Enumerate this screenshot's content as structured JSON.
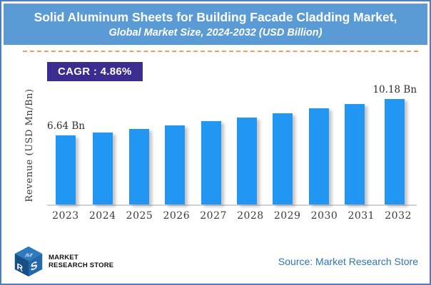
{
  "header": {
    "title": "Solid Aluminum Sheets for Building Facade Cladding Market,",
    "subtitle": "Global Market Size, 2024-2032 (USD Billion)"
  },
  "cagr_badge": "CAGR : 4.86%",
  "chart_data": {
    "type": "bar",
    "title": "Solid Aluminum Sheets for Building Facade Cladding Market, Global Market Size, 2024-2032 (USD Billion)",
    "categories": [
      "2023",
      "2024",
      "2025",
      "2026",
      "2027",
      "2028",
      "2029",
      "2030",
      "2031",
      "2032"
    ],
    "values": [
      6.64,
      6.96,
      7.3,
      7.66,
      8.03,
      8.42,
      8.83,
      9.26,
      9.71,
      10.18
    ],
    "value_labels": {
      "2023": "6.64 Bn",
      "2032": "10.18 Bn"
    },
    "xlabel": "",
    "ylabel": "Revenue (USD Mn/Bn)",
    "ylim": [
      0,
      11
    ],
    "bar_color": "#2196F3",
    "grid": false,
    "legend": false,
    "cagr_percent": 4.86
  },
  "footer": {
    "logo_text_line1": "MARKET",
    "logo_text_line2": "RESEARCH STORE",
    "source": "Source: Market Research Store"
  },
  "colors": {
    "header_bg": "#5B9BD5",
    "border": "#4D7EBF",
    "divider": "#ED9E64",
    "cagr_bg": "#3B2D8F",
    "source_text": "#2E74B5",
    "axis_text": "#3A3A3A"
  }
}
